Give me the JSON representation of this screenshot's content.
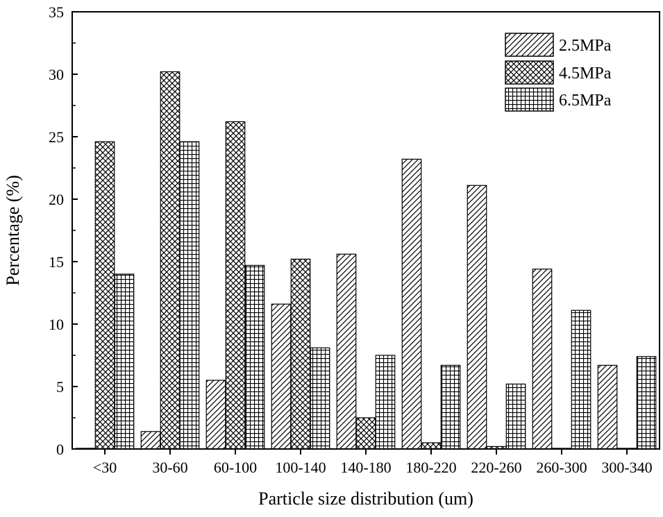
{
  "chart_data": {
    "type": "bar",
    "title": "",
    "xlabel": "Particle size distribution (um)",
    "ylabel": "Percentage (%)",
    "ylim": [
      0,
      35
    ],
    "yticks": [
      0,
      5,
      10,
      15,
      20,
      25,
      30,
      35
    ],
    "grid": false,
    "legend_position": "top-right",
    "categories": [
      "<30",
      "30-60",
      "60-100",
      "100-140",
      "140-180",
      "180-220",
      "220-260",
      "260-300",
      "300-340"
    ],
    "series": [
      {
        "name": "2.5MPa",
        "pattern": "diagonal-hatch",
        "values": [
          0.0,
          1.4,
          5.5,
          11.6,
          15.6,
          23.2,
          21.1,
          14.4,
          6.7
        ]
      },
      {
        "name": "4.5MPa",
        "pattern": "cross-hatch",
        "values": [
          24.6,
          30.2,
          26.2,
          15.2,
          2.5,
          0.5,
          0.2,
          0.0,
          0.0
        ]
      },
      {
        "name": "6.5MPa",
        "pattern": "grid",
        "values": [
          14.0,
          24.6,
          14.7,
          8.1,
          7.5,
          6.7,
          5.2,
          11.1,
          7.4
        ]
      }
    ],
    "colors": {
      "ink": "#000000",
      "background": "#ffffff"
    }
  }
}
